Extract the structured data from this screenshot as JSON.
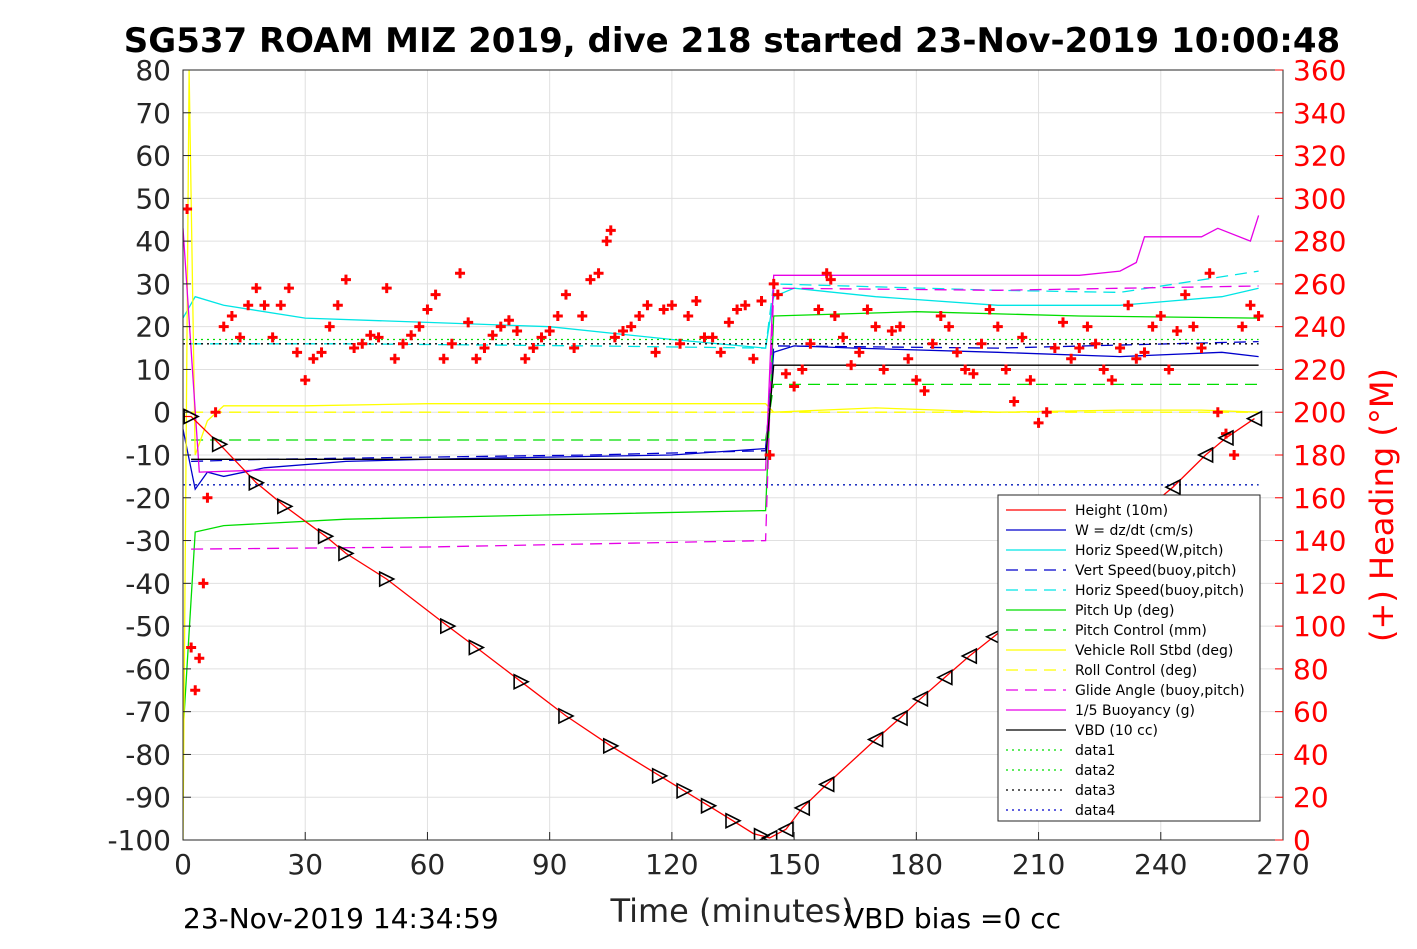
{
  "chart_data": {
    "type": "line",
    "title": "SG537 ROAM MIZ 2019, dive 218 started 23-Nov-2019 10:00:48",
    "xlabel": "Time (minutes)",
    "ylabel": "",
    "y2label": "(+) Heading (°M)",
    "xlim": [
      0,
      270
    ],
    "ylim": [
      -100,
      80
    ],
    "y2lim": [
      0,
      360
    ],
    "xticks": [
      0,
      30,
      60,
      90,
      120,
      150,
      180,
      210,
      240,
      270
    ],
    "yticks": [
      -100,
      -90,
      -80,
      -70,
      -60,
      -50,
      -40,
      -30,
      -20,
      -10,
      0,
      10,
      20,
      30,
      40,
      50,
      60,
      70,
      80
    ],
    "y2ticks": [
      0,
      20,
      40,
      60,
      80,
      100,
      120,
      140,
      160,
      180,
      200,
      220,
      240,
      260,
      280,
      300,
      320,
      340,
      360
    ],
    "grid": true,
    "legend_position": "lower-right",
    "footer_left": "23-Nov-2019 14:34:59",
    "footer_right": "VBD bias =0 cc",
    "colors": {
      "red": "#ff0000",
      "blue": "#0000cc",
      "cyan": "#00e5e5",
      "green": "#00dd00",
      "yellow": "#ffff00",
      "magenta": "#e600e6",
      "black": "#000000",
      "grid": "#e0e0e0"
    },
    "series": [
      {
        "name": "Height (10m)",
        "color": "#ff0000",
        "dash": "solid",
        "x": [
          0,
          2,
          9,
          18,
          25,
          35,
          40,
          50,
          65,
          72,
          83,
          94,
          105,
          117,
          123,
          129,
          135,
          140,
          142,
          144,
          148,
          152,
          158,
          170,
          176,
          181,
          187,
          193,
          199,
          243,
          251,
          256,
          263
        ],
        "y": [
          -1,
          -1,
          -7.5,
          -16.5,
          -22,
          -29,
          -33,
          -39,
          -50,
          -55,
          -63,
          -71,
          -78,
          -85,
          -88.5,
          -92,
          -95.5,
          -98.5,
          -99,
          -99.5,
          -97.5,
          -92.5,
          -87,
          -76.5,
          -71.5,
          -67,
          -62,
          -57,
          -52.5,
          -17.5,
          -10,
          -6,
          -1.5
        ]
      },
      {
        "name": "W = dz/dt (cm/s)",
        "color": "#0000cc",
        "dash": "solid",
        "x": [
          0,
          3,
          6,
          10,
          20,
          40,
          60,
          90,
          120,
          143,
          145,
          150,
          165,
          200,
          230,
          255,
          264
        ],
        "y": [
          -4,
          -18,
          -14,
          -15,
          -13,
          -11.5,
          -11,
          -10.5,
          -10,
          -8.5,
          14,
          15.5,
          15,
          14,
          13,
          14,
          13
        ]
      },
      {
        "name": "Horiz Speed(W,pitch)",
        "color": "#00e5e5",
        "dash": "solid",
        "x": [
          0,
          3,
          10,
          30,
          60,
          90,
          120,
          143,
          145,
          150,
          170,
          200,
          230,
          255,
          264
        ],
        "y": [
          22,
          27,
          25,
          22,
          21,
          20,
          17,
          15,
          27,
          29,
          27,
          25,
          25,
          27,
          29
        ]
      },
      {
        "name": "Vert Speed(buoy,pitch)",
        "color": "#0000cc",
        "dash": "dash",
        "x": [
          2,
          20,
          60,
          100,
          143,
          145,
          200,
          264
        ],
        "y": [
          -11.5,
          -11,
          -10.5,
          -10,
          -9,
          15.5,
          15,
          16.5
        ]
      },
      {
        "name": "Horiz Speed(buoy,pitch)",
        "color": "#00e5e5",
        "dash": "dash",
        "x": [
          2,
          40,
          100,
          143,
          145,
          200,
          230,
          264
        ],
        "y": [
          16,
          16,
          15.5,
          15,
          30,
          28.5,
          28,
          33
        ]
      },
      {
        "name": "Pitch Up (deg)",
        "color": "#00dd00",
        "dash": "solid",
        "x": [
          0,
          3,
          10,
          40,
          90,
          143,
          145,
          180,
          220,
          264
        ],
        "y": [
          -75,
          -28,
          -26.5,
          -25,
          -24,
          -23,
          22.5,
          23.5,
          22.5,
          22
        ]
      },
      {
        "name": "Pitch Control (mm)",
        "color": "#00dd00",
        "dash": "dash",
        "x": [
          2,
          143,
          145,
          264
        ],
        "y": [
          -6.5,
          -6.5,
          6.5,
          6.5
        ]
      },
      {
        "name": "Vehicle Roll Stbd (deg)",
        "color": "#ffff00",
        "dash": "solid",
        "x": [
          0,
          1.5,
          3,
          6,
          10,
          30,
          60,
          90,
          120,
          143,
          145,
          170,
          200,
          230,
          250,
          264
        ],
        "y": [
          -100,
          80,
          -10,
          -2,
          1.5,
          1.5,
          2,
          2,
          2,
          2,
          0,
          1,
          0,
          0.5,
          0.5,
          0
        ]
      },
      {
        "name": "Roll Control (deg)",
        "color": "#ffff00",
        "dash": "dash",
        "x": [
          2,
          264
        ],
        "y": [
          0,
          0
        ]
      },
      {
        "name": "Glide Angle (buoy,pitch)",
        "color": "#e600e6",
        "dash": "dash",
        "x": [
          2,
          60,
          143,
          145,
          200,
          264
        ],
        "y": [
          -32,
          -31.5,
          -30,
          29,
          28.5,
          29.5
        ]
      },
      {
        "name": "1/5 Buoyancy (g)",
        "color": "#e600e6",
        "dash": "solid",
        "x": [
          0,
          4,
          20,
          143,
          145,
          220,
          230,
          234,
          236,
          250,
          254,
          262,
          264
        ],
        "y": [
          43,
          -14,
          -13.5,
          -13.5,
          32,
          32,
          33,
          35,
          41,
          41,
          43,
          40,
          46
        ]
      },
      {
        "name": "VBD (10 cc)",
        "color": "#000000",
        "dash": "solid",
        "x": [
          2,
          143,
          145,
          264
        ],
        "y": [
          -11,
          -11,
          11,
          11
        ]
      },
      {
        "name": "data1",
        "color": "#00dd00",
        "dash": "dot",
        "x": [
          0,
          264
        ],
        "y": [
          17,
          17
        ]
      },
      {
        "name": "data2",
        "color": "#00dd00",
        "dash": "dot",
        "x": [
          0,
          264
        ],
        "y": [
          -17,
          -17
        ]
      },
      {
        "name": "data3",
        "color": "#000000",
        "dash": "dot",
        "x": [
          0,
          264
        ],
        "y": [
          16,
          16
        ]
      },
      {
        "name": "data4",
        "color": "#0000cc",
        "dash": "dot",
        "x": [
          0,
          264
        ],
        "y": [
          -17,
          -17
        ]
      }
    ],
    "heading_series": {
      "name": "(+) Heading (°M)",
      "color": "#ff0000",
      "marker": "plus",
      "x": [
        1,
        2,
        3,
        4,
        5,
        6,
        8,
        10,
        12,
        14,
        16,
        18,
        20,
        22,
        24,
        26,
        28,
        30,
        32,
        34,
        36,
        38,
        40,
        42,
        44,
        46,
        48,
        50,
        52,
        54,
        56,
        58,
        60,
        62,
        64,
        66,
        68,
        70,
        72,
        74,
        76,
        78,
        80,
        82,
        84,
        86,
        88,
        90,
        92,
        94,
        96,
        98,
        100,
        102,
        104,
        105,
        106,
        108,
        110,
        112,
        114,
        116,
        118,
        120,
        122,
        124,
        126,
        128,
        130,
        132,
        134,
        136,
        138,
        140,
        142,
        144,
        145,
        146,
        148,
        150,
        152,
        154,
        156,
        158,
        159,
        160,
        162,
        164,
        166,
        168,
        170,
        172,
        174,
        176,
        178,
        180,
        182,
        184,
        186,
        188,
        190,
        192,
        194,
        196,
        198,
        200,
        202,
        204,
        206,
        208,
        210,
        212,
        214,
        216,
        218,
        220,
        222,
        224,
        226,
        228,
        230,
        232,
        234,
        236,
        238,
        240,
        242,
        244,
        246,
        248,
        250,
        252,
        254,
        256,
        258,
        260,
        262,
        264
      ],
      "y": [
        295,
        90,
        70,
        85,
        120,
        160,
        200,
        240,
        245,
        235,
        250,
        258,
        250,
        235,
        250,
        258,
        228,
        215,
        225,
        228,
        240,
        250,
        262,
        230,
        232,
        236,
        235,
        258,
        225,
        232,
        236,
        240,
        248,
        255,
        225,
        232,
        265,
        242,
        225,
        230,
        236,
        240,
        243,
        238,
        225,
        230,
        235,
        238,
        245,
        255,
        230,
        245,
        262,
        265,
        280,
        285,
        235,
        238,
        240,
        245,
        250,
        228,
        248,
        250,
        232,
        245,
        252,
        235,
        235,
        228,
        242,
        248,
        250,
        225,
        252,
        180,
        260,
        255,
        218,
        212,
        220,
        232,
        248,
        265,
        262,
        245,
        235,
        222,
        228,
        248,
        240,
        220,
        238,
        240,
        225,
        215,
        210,
        232,
        245,
        240,
        228,
        220,
        218,
        232,
        248,
        240,
        220,
        205,
        235,
        215,
        195,
        200,
        230,
        242,
        225,
        230,
        240,
        232,
        220,
        215,
        230,
        250,
        225,
        228,
        240,
        245,
        220,
        238,
        255,
        240,
        230,
        265,
        200,
        190,
        180,
        240,
        250,
        245
      ]
    },
    "height_markers": {
      "x": [
        2,
        9,
        18,
        25,
        35,
        40,
        50,
        65,
        72,
        83,
        94,
        105,
        117,
        123,
        129,
        135,
        142,
        144,
        148,
        152,
        158,
        170,
        176,
        181,
        187,
        193,
        199,
        243,
        251,
        256,
        263
      ],
      "y": [
        -1,
        -7.5,
        -16.5,
        -22,
        -29,
        -33,
        -39,
        -50,
        -55,
        -63,
        -71,
        -78,
        -85,
        -88.5,
        -92,
        -95.5,
        -99,
        -99.5,
        -97.5,
        -92.5,
        -87,
        -76.5,
        -71.5,
        -67,
        -62,
        -57,
        -52.5,
        -17.5,
        -10,
        -6,
        -1.5
      ]
    }
  }
}
